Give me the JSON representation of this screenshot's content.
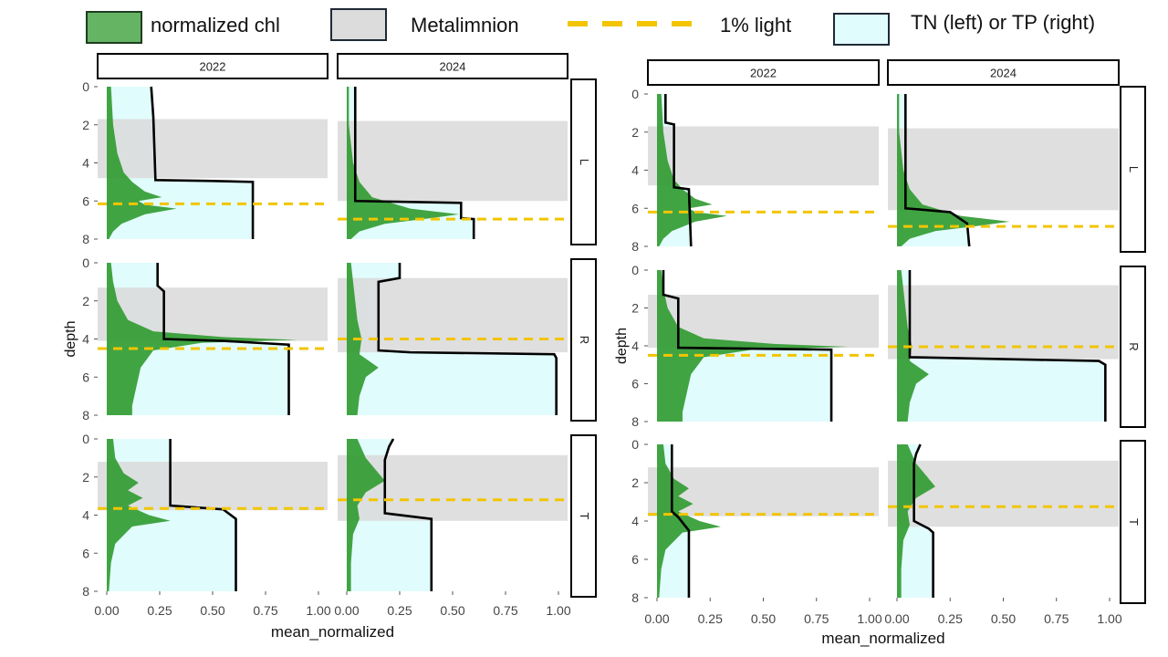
{
  "legend": {
    "items": [
      {
        "label": "normalized chl",
        "color": "#4daf4a"
      },
      {
        "label": "Metalimnion",
        "color": "#dcdcdc"
      },
      {
        "label": "1% light",
        "color": "#f2c500"
      },
      {
        "label": "TN (left) or TP (right)",
        "color": "#e1fcfc"
      }
    ]
  },
  "colors": {
    "chl": "#2f9a2f",
    "metalimnion": "#d9d9d9",
    "light": "#f2c500",
    "nutrient": "#e1fcfc",
    "profile_line": "#000000"
  },
  "chart_data": [
    {
      "type": "area",
      "panel_group": "left (TN)",
      "xlabel": "mean_normalized",
      "ylabel": "depth",
      "x_ticks": [
        "0.00",
        "0.25",
        "0.50",
        "0.75",
        "1.00"
      ],
      "y_ticks": [
        "0",
        "2",
        "4",
        "6",
        "8"
      ],
      "xlim": [
        0,
        1
      ],
      "ylim_depth": [
        0,
        8
      ],
      "y_reversed": true,
      "columns": [
        "2022",
        "2024"
      ],
      "rows": [
        "L",
        "R",
        "T"
      ],
      "facets": [
        {
          "column": "2022",
          "row": "L",
          "metalimnion": [
            1.7,
            4.8
          ],
          "light_depth": 6.15,
          "nutrient": [
            [
              0,
              0.21
            ],
            [
              1.6,
              0.22
            ],
            [
              4.9,
              0.23
            ],
            [
              4.95,
              0.5
            ],
            [
              5.0,
              0.69
            ],
            [
              8.0,
              0.69
            ]
          ],
          "chl": [
            [
              0,
              0.02
            ],
            [
              2,
              0.03
            ],
            [
              3.5,
              0.05
            ],
            [
              4.5,
              0.08
            ],
            [
              5.0,
              0.12
            ],
            [
              5.5,
              0.18
            ],
            [
              5.8,
              0.26
            ],
            [
              6.0,
              0.15
            ],
            [
              6.2,
              0.18
            ],
            [
              6.4,
              0.33
            ],
            [
              6.7,
              0.18
            ],
            [
              7.2,
              0.07
            ],
            [
              7.6,
              0.03
            ],
            [
              8.0,
              0.01
            ]
          ]
        },
        {
          "column": "2024",
          "row": "L",
          "metalimnion": [
            1.8,
            6.0
          ],
          "light_depth": 6.95,
          "nutrient": [
            [
              0,
              0.04
            ],
            [
              1.8,
              0.04
            ],
            [
              6.0,
              0.04
            ],
            [
              6.05,
              0.3
            ],
            [
              6.1,
              0.54
            ],
            [
              6.9,
              0.54
            ],
            [
              6.95,
              0.6
            ],
            [
              8.0,
              0.6
            ]
          ],
          "chl": [
            [
              0,
              0.01
            ],
            [
              2,
              0.01
            ],
            [
              3,
              0.02
            ],
            [
              4,
              0.03
            ],
            [
              5,
              0.06
            ],
            [
              5.8,
              0.12
            ],
            [
              6.4,
              0.3
            ],
            [
              6.7,
              0.53
            ],
            [
              6.9,
              0.4
            ],
            [
              7.2,
              0.18
            ],
            [
              7.6,
              0.06
            ],
            [
              8.0,
              0.02
            ]
          ]
        },
        {
          "column": "2022",
          "row": "R",
          "metalimnion": [
            1.3,
            4.1
          ],
          "light_depth": 4.5,
          "nutrient": [
            [
              0,
              0.24
            ],
            [
              1.2,
              0.24
            ],
            [
              1.5,
              0.27
            ],
            [
              4.0,
              0.27
            ],
            [
              4.1,
              0.55
            ],
            [
              4.3,
              0.86
            ],
            [
              8.0,
              0.86
            ]
          ],
          "chl": [
            [
              0,
              0.02
            ],
            [
              1,
              0.03
            ],
            [
              2,
              0.05
            ],
            [
              3,
              0.1
            ],
            [
              3.6,
              0.22
            ],
            [
              3.9,
              0.55
            ],
            [
              4.05,
              0.9
            ],
            [
              4.2,
              0.45
            ],
            [
              4.6,
              0.22
            ],
            [
              5.5,
              0.16
            ],
            [
              6.5,
              0.14
            ],
            [
              7.5,
              0.12
            ],
            [
              8.0,
              0.12
            ]
          ]
        },
        {
          "column": "2024",
          "row": "R",
          "metalimnion": [
            0.8,
            4.7
          ],
          "light_depth": 4.0,
          "nutrient": [
            [
              0,
              0.25
            ],
            [
              0.8,
              0.25
            ],
            [
              1.0,
              0.15
            ],
            [
              4.6,
              0.15
            ],
            [
              4.7,
              0.3
            ],
            [
              4.8,
              0.98
            ],
            [
              5.0,
              0.99
            ],
            [
              8.0,
              0.99
            ]
          ],
          "chl": [
            [
              0,
              0.02
            ],
            [
              1,
              0.03
            ],
            [
              2,
              0.04
            ],
            [
              3,
              0.05
            ],
            [
              4,
              0.07
            ],
            [
              4.8,
              0.06
            ],
            [
              5.5,
              0.15
            ],
            [
              6.0,
              0.09
            ],
            [
              7.0,
              0.06
            ],
            [
              8.0,
              0.05
            ]
          ]
        },
        {
          "column": "2022",
          "row": "T",
          "metalimnion": [
            1.2,
            3.75
          ],
          "light_depth": 3.65,
          "nutrient": [
            [
              0,
              0.3
            ],
            [
              3.5,
              0.3
            ],
            [
              3.7,
              0.55
            ],
            [
              4.2,
              0.61
            ],
            [
              8.0,
              0.61
            ]
          ],
          "chl": [
            [
              0,
              0.03
            ],
            [
              1,
              0.04
            ],
            [
              1.8,
              0.08
            ],
            [
              2.3,
              0.15
            ],
            [
              2.7,
              0.1
            ],
            [
              3.1,
              0.17
            ],
            [
              3.5,
              0.1
            ],
            [
              4.0,
              0.2
            ],
            [
              4.3,
              0.3
            ],
            [
              4.6,
              0.12
            ],
            [
              5.5,
              0.04
            ],
            [
              6.5,
              0.02
            ],
            [
              8.0,
              0.01
            ]
          ]
        },
        {
          "column": "2024",
          "row": "T",
          "metalimnion": [
            0.85,
            4.3
          ],
          "light_depth": 3.2,
          "nutrient": [
            [
              0,
              0.22
            ],
            [
              0.4,
              0.2
            ],
            [
              1.1,
              0.18
            ],
            [
              3.9,
              0.18
            ],
            [
              4.2,
              0.4
            ],
            [
              8.0,
              0.4
            ]
          ],
          "chl": [
            [
              0,
              0.05
            ],
            [
              1,
              0.09
            ],
            [
              2.2,
              0.18
            ],
            [
              2.8,
              0.09
            ],
            [
              3.5,
              0.05
            ],
            [
              4.2,
              0.06
            ],
            [
              5.0,
              0.03
            ],
            [
              6.5,
              0.02
            ],
            [
              8.0,
              0.02
            ]
          ]
        }
      ]
    },
    {
      "type": "area",
      "panel_group": "right (TP)",
      "xlabel": "mean_normalized",
      "ylabel": "depth",
      "x_ticks": [
        "0.00",
        "0.25",
        "0.50",
        "0.75",
        "1.00"
      ],
      "y_ticks": [
        "0",
        "2",
        "4",
        "6",
        "8"
      ],
      "xlim": [
        0,
        1
      ],
      "ylim_depth": [
        0,
        8
      ],
      "y_reversed": true,
      "columns": [
        "2022",
        "2024"
      ],
      "rows": [
        "L",
        "R",
        "T"
      ],
      "facets": [
        {
          "column": "2022",
          "row": "L",
          "metalimnion": [
            1.7,
            4.8
          ],
          "light_depth": 6.2,
          "nutrient": [
            [
              0,
              0.04
            ],
            [
              1.5,
              0.04
            ],
            [
              1.6,
              0.08
            ],
            [
              4.9,
              0.08
            ],
            [
              5.0,
              0.15
            ],
            [
              8.0,
              0.16
            ]
          ],
          "chl": [
            [
              0,
              0.02
            ],
            [
              2,
              0.03
            ],
            [
              3.5,
              0.05
            ],
            [
              4.5,
              0.08
            ],
            [
              5.0,
              0.12
            ],
            [
              5.5,
              0.18
            ],
            [
              5.8,
              0.26
            ],
            [
              6.0,
              0.15
            ],
            [
              6.2,
              0.18
            ],
            [
              6.4,
              0.33
            ],
            [
              6.7,
              0.18
            ],
            [
              7.2,
              0.07
            ],
            [
              7.6,
              0.03
            ],
            [
              8.0,
              0.01
            ]
          ]
        },
        {
          "column": "2024",
          "row": "L",
          "metalimnion": [
            1.8,
            6.1
          ],
          "light_depth": 6.95,
          "nutrient": [
            [
              0,
              0.04
            ],
            [
              6.0,
              0.04
            ],
            [
              6.2,
              0.25
            ],
            [
              6.8,
              0.33
            ],
            [
              8.0,
              0.34
            ]
          ],
          "chl": [
            [
              0,
              0.01
            ],
            [
              2,
              0.01
            ],
            [
              3,
              0.02
            ],
            [
              4,
              0.03
            ],
            [
              5,
              0.06
            ],
            [
              5.8,
              0.12
            ],
            [
              6.4,
              0.3
            ],
            [
              6.7,
              0.53
            ],
            [
              6.9,
              0.4
            ],
            [
              7.2,
              0.18
            ],
            [
              7.6,
              0.06
            ],
            [
              8.0,
              0.02
            ]
          ]
        },
        {
          "column": "2022",
          "row": "R",
          "metalimnion": [
            1.3,
            4.1
          ],
          "light_depth": 4.5,
          "nutrient": [
            [
              0,
              0.03
            ],
            [
              1.3,
              0.03
            ],
            [
              1.5,
              0.1
            ],
            [
              4.1,
              0.1
            ],
            [
              4.2,
              0.82
            ],
            [
              8.0,
              0.82
            ]
          ],
          "chl": [
            [
              0,
              0.02
            ],
            [
              1,
              0.03
            ],
            [
              2,
              0.05
            ],
            [
              3,
              0.1
            ],
            [
              3.6,
              0.22
            ],
            [
              3.9,
              0.55
            ],
            [
              4.05,
              0.9
            ],
            [
              4.2,
              0.45
            ],
            [
              4.6,
              0.22
            ],
            [
              5.5,
              0.16
            ],
            [
              6.5,
              0.14
            ],
            [
              7.5,
              0.12
            ],
            [
              8.0,
              0.12
            ]
          ]
        },
        {
          "column": "2024",
          "row": "R",
          "metalimnion": [
            0.8,
            4.7
          ],
          "light_depth": 4.05,
          "nutrient": [
            [
              0,
              0.06
            ],
            [
              4.6,
              0.06
            ],
            [
              4.8,
              0.95
            ],
            [
              5.0,
              0.98
            ],
            [
              8.0,
              0.98
            ]
          ],
          "chl": [
            [
              0,
              0.02
            ],
            [
              1,
              0.03
            ],
            [
              2,
              0.04
            ],
            [
              3,
              0.05
            ],
            [
              4,
              0.07
            ],
            [
              4.8,
              0.06
            ],
            [
              5.5,
              0.15
            ],
            [
              6.0,
              0.09
            ],
            [
              7.0,
              0.06
            ],
            [
              8.0,
              0.05
            ]
          ]
        },
        {
          "column": "2022",
          "row": "T",
          "metalimnion": [
            1.2,
            3.75
          ],
          "light_depth": 3.65,
          "nutrient": [
            [
              0,
              0.07
            ],
            [
              3.5,
              0.07
            ],
            [
              3.8,
              0.1
            ],
            [
              4.5,
              0.15
            ],
            [
              8.0,
              0.15
            ]
          ],
          "chl": [
            [
              0,
              0.03
            ],
            [
              1,
              0.04
            ],
            [
              1.8,
              0.08
            ],
            [
              2.3,
              0.15
            ],
            [
              2.7,
              0.1
            ],
            [
              3.1,
              0.17
            ],
            [
              3.5,
              0.1
            ],
            [
              4.0,
              0.2
            ],
            [
              4.3,
              0.3
            ],
            [
              4.6,
              0.12
            ],
            [
              5.5,
              0.04
            ],
            [
              6.5,
              0.02
            ],
            [
              8.0,
              0.01
            ]
          ]
        },
        {
          "column": "2024",
          "row": "T",
          "metalimnion": [
            0.85,
            4.3
          ],
          "light_depth": 3.25,
          "nutrient": [
            [
              0,
              0.11
            ],
            [
              0.5,
              0.09
            ],
            [
              1.0,
              0.08
            ],
            [
              4.0,
              0.08
            ],
            [
              4.4,
              0.15
            ],
            [
              4.6,
              0.17
            ],
            [
              8.0,
              0.17
            ]
          ],
          "chl": [
            [
              0,
              0.05
            ],
            [
              1,
              0.09
            ],
            [
              2.2,
              0.18
            ],
            [
              2.8,
              0.09
            ],
            [
              3.5,
              0.05
            ],
            [
              4.2,
              0.06
            ],
            [
              5.0,
              0.03
            ],
            [
              6.5,
              0.02
            ],
            [
              8.0,
              0.02
            ]
          ]
        }
      ]
    }
  ]
}
